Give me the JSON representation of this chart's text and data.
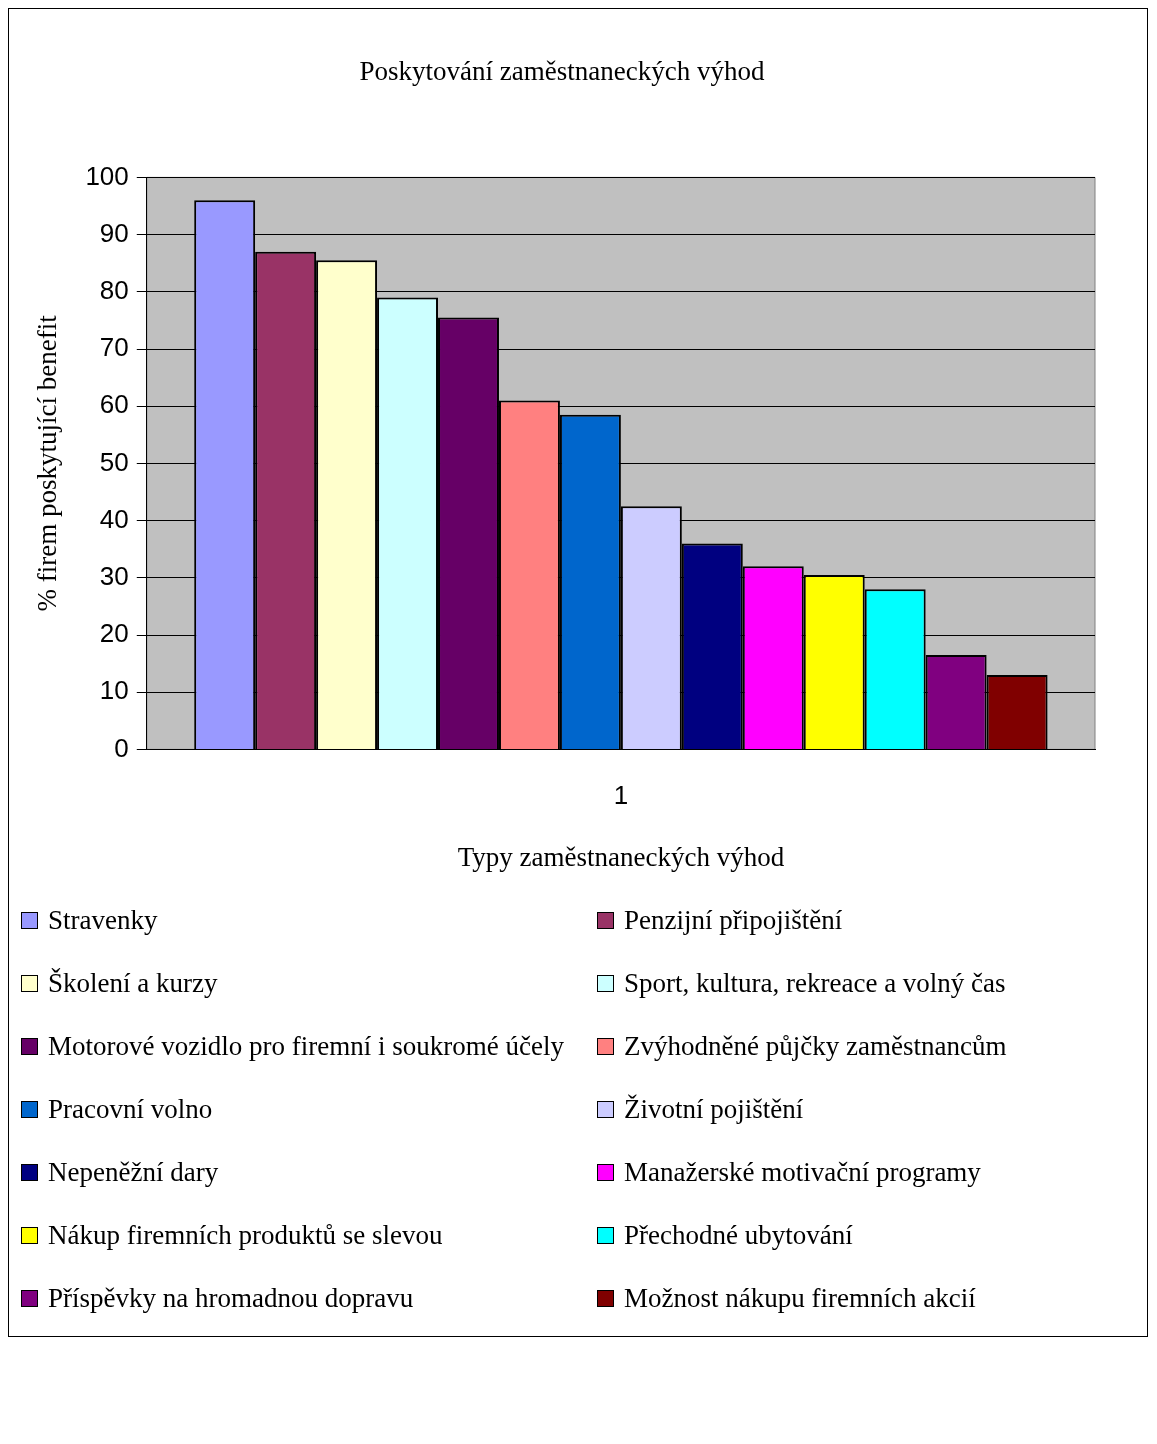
{
  "chart_data": {
    "type": "bar",
    "title": "Poskytování zaměstnaneckých výhod",
    "xlabel": "Typy zaměstnaneckých výhod",
    "ylabel": "% firem poskytující benefit",
    "categories": [
      "1"
    ],
    "series": [
      {
        "name": "Stravenky",
        "color": "#9999ff",
        "values": [
          96
        ]
      },
      {
        "name": "Penzijní připojištění",
        "color": "#993366",
        "values": [
          87
        ]
      },
      {
        "name": "Školení a kurzy",
        "color": "#ffffcc",
        "values": [
          85.5
        ]
      },
      {
        "name": "Sport, kultura, rekreace a volný čas",
        "color": "#ccffff",
        "values": [
          79
        ]
      },
      {
        "name": "Motorové vozidlo pro firemní i soukromé účely",
        "color": "#660066",
        "values": [
          75.5
        ]
      },
      {
        "name": "Zvýhodněné půjčky zaměstnancům",
        "color": "#ff8080",
        "values": [
          61
        ]
      },
      {
        "name": "Pracovní volno",
        "color": "#0066cc",
        "values": [
          58.5
        ]
      },
      {
        "name": "Životní pojištění",
        "color": "#ccccff",
        "values": [
          42.5
        ]
      },
      {
        "name": "Nepeněžní dary",
        "color": "#000080",
        "values": [
          36
        ]
      },
      {
        "name": "Manažerské motivační programy",
        "color": "#ff00ff",
        "values": [
          32
        ]
      },
      {
        "name": "Nákup firemních produktů se slevou",
        "color": "#ffff00",
        "values": [
          30.5
        ]
      },
      {
        "name": "Přechodné ubytování",
        "color": "#00ffff",
        "values": [
          28
        ]
      },
      {
        "name": "Příspěvky na hromadnou dopravu",
        "color": "#800080",
        "values": [
          16.5
        ]
      },
      {
        "name": "Možnost nákupu firemních akcií",
        "color": "#800000",
        "values": [
          13
        ]
      }
    ],
    "ylim": [
      0,
      100
    ],
    "yticks": [
      0,
      10,
      20,
      30,
      40,
      50,
      60,
      70,
      80,
      90,
      100
    ],
    "grid": "y",
    "legend": "bottom"
  }
}
